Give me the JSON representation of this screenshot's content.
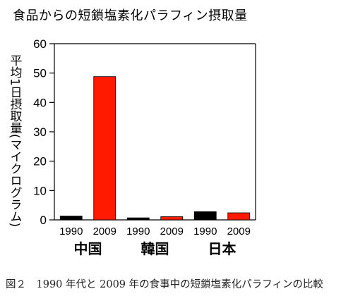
{
  "chart_data": {
    "type": "bar",
    "title": "食品からの短鎖塩素化パラフィン摂取量",
    "ylabel": "平均1日摂取量(マイクログラム)",
    "xlabel": "",
    "ylim": [
      0,
      60
    ],
    "yticks": [
      0,
      10,
      20,
      30,
      40,
      50,
      60
    ],
    "grid": false,
    "groups": [
      {
        "label": "中国",
        "bars": [
          {
            "year": "1990",
            "value": 1.3
          },
          {
            "year": "2009",
            "value": 48.8
          }
        ]
      },
      {
        "label": "韓国",
        "bars": [
          {
            "year": "1990",
            "value": 0.7
          },
          {
            "year": "2009",
            "value": 1.1
          }
        ]
      },
      {
        "label": "日本",
        "bars": [
          {
            "year": "1990",
            "value": 2.8
          },
          {
            "year": "2009",
            "value": 2.4
          }
        ]
      }
    ],
    "colors": {
      "1990": "#000000",
      "2009": "#ff1a00"
    }
  },
  "caption": "図２　1990 年代と 2009 年の食事中の短鎖塩素化パラフィンの比較"
}
